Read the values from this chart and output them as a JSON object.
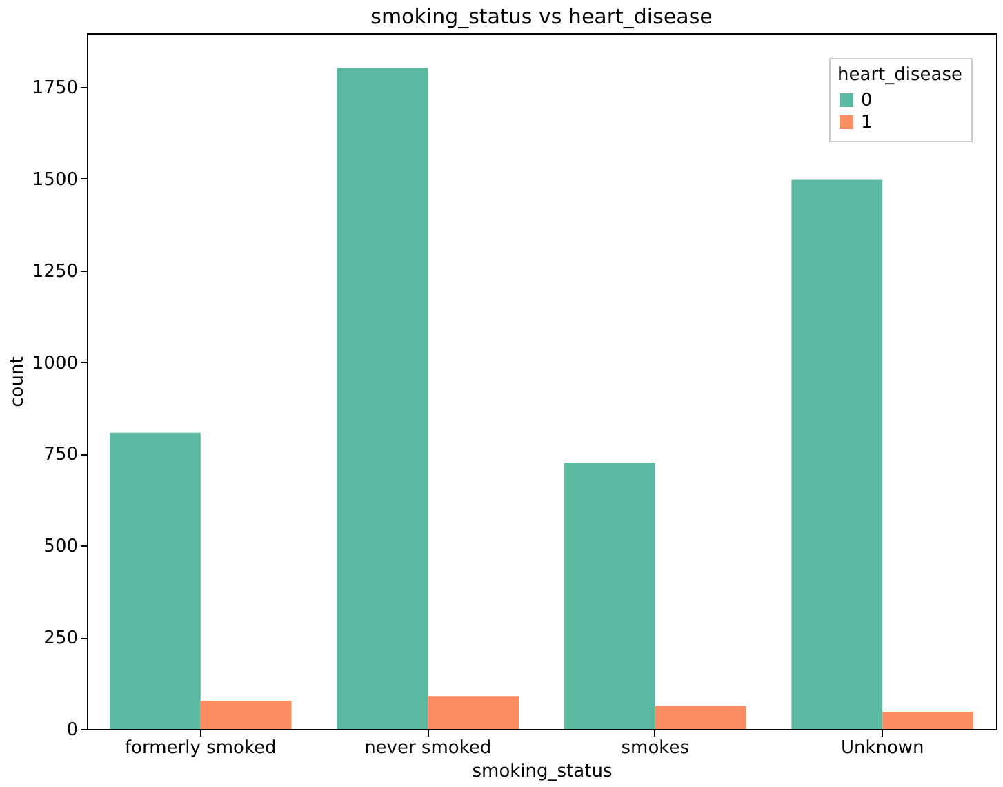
{
  "chart_data": {
    "type": "bar",
    "title": "smoking_status vs heart_disease",
    "xlabel": "smoking_status",
    "ylabel": "count",
    "legend_title": "heart_disease",
    "categories": [
      "formerly smoked",
      "never smoked",
      "smokes",
      "Unknown"
    ],
    "series": [
      {
        "name": "0",
        "color": "#5ab9a0",
        "values": [
          808,
          1802,
          726,
          1497
        ]
      },
      {
        "name": "1",
        "color": "#fc8d62",
        "values": [
          77,
          90,
          63,
          47
        ]
      }
    ],
    "ylim": [
      0,
      1897
    ],
    "yticks": [
      0,
      250,
      500,
      750,
      1000,
      1250,
      1500,
      1750
    ],
    "grid": false,
    "legend": "top right"
  }
}
